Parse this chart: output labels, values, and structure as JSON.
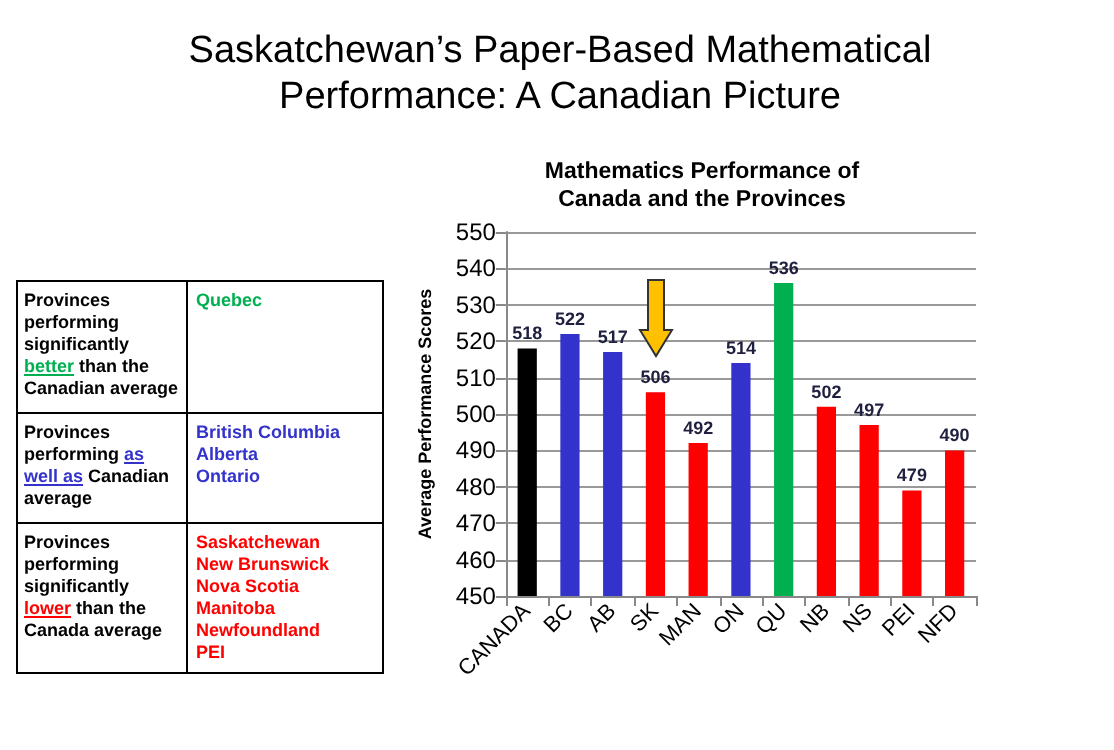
{
  "chart_data": [
    {
      "type": "other",
      "title": "Saskatchewan’s Paper-Based Mathematical Performance:  A Canadian Picture",
      "annotations": [
        "Provinces performing significantly",
        "better",
        "than the Canadian average",
        "Quebec",
        "Provinces performing",
        "as well as",
        "Canadian average",
        "British Columbia\nAlberta\nOntario",
        "Provinces performing significantly",
        "lower",
        "than the Canada average",
        "Saskatchewan\nNew Brunswick\nNova Scotia\nManitoba\nNewfoundland\nPEI"
      ],
      "colors": [
        "#000000",
        "#00b050",
        "#000000",
        "#00b050",
        "#000000",
        "#3333cc",
        "#000000",
        "#3333cc",
        "#000000",
        "#ff0000",
        "#000000",
        "#ff0000"
      ]
    },
    {
      "type": "bar",
      "title": "Mathematics Performance of\nCanada and the Provinces",
      "ylabel": "Average Performance Scores",
      "categories": [
        "CANADA",
        "BC",
        "AB",
        "SK",
        "MAN",
        "ON",
        "QU",
        "NB",
        "NS",
        "PEI",
        "NFD"
      ],
      "values": [
        518,
        522,
        517,
        506,
        492,
        514,
        536,
        502,
        497,
        479,
        490
      ],
      "colors": [
        "#000000",
        "#3333cc",
        "#3333cc",
        "#ff0000",
        "#ff0000",
        "#3333cc",
        "#00b050",
        "#ff0000",
        "#ff0000",
        "#ff0000",
        "#ff0000"
      ],
      "ylim": [
        450,
        550
      ],
      "yticks": [
        450,
        460,
        470,
        480,
        490,
        500,
        510,
        520,
        530,
        540,
        550
      ],
      "grid": "y",
      "data_labels": true
    }
  ]
}
